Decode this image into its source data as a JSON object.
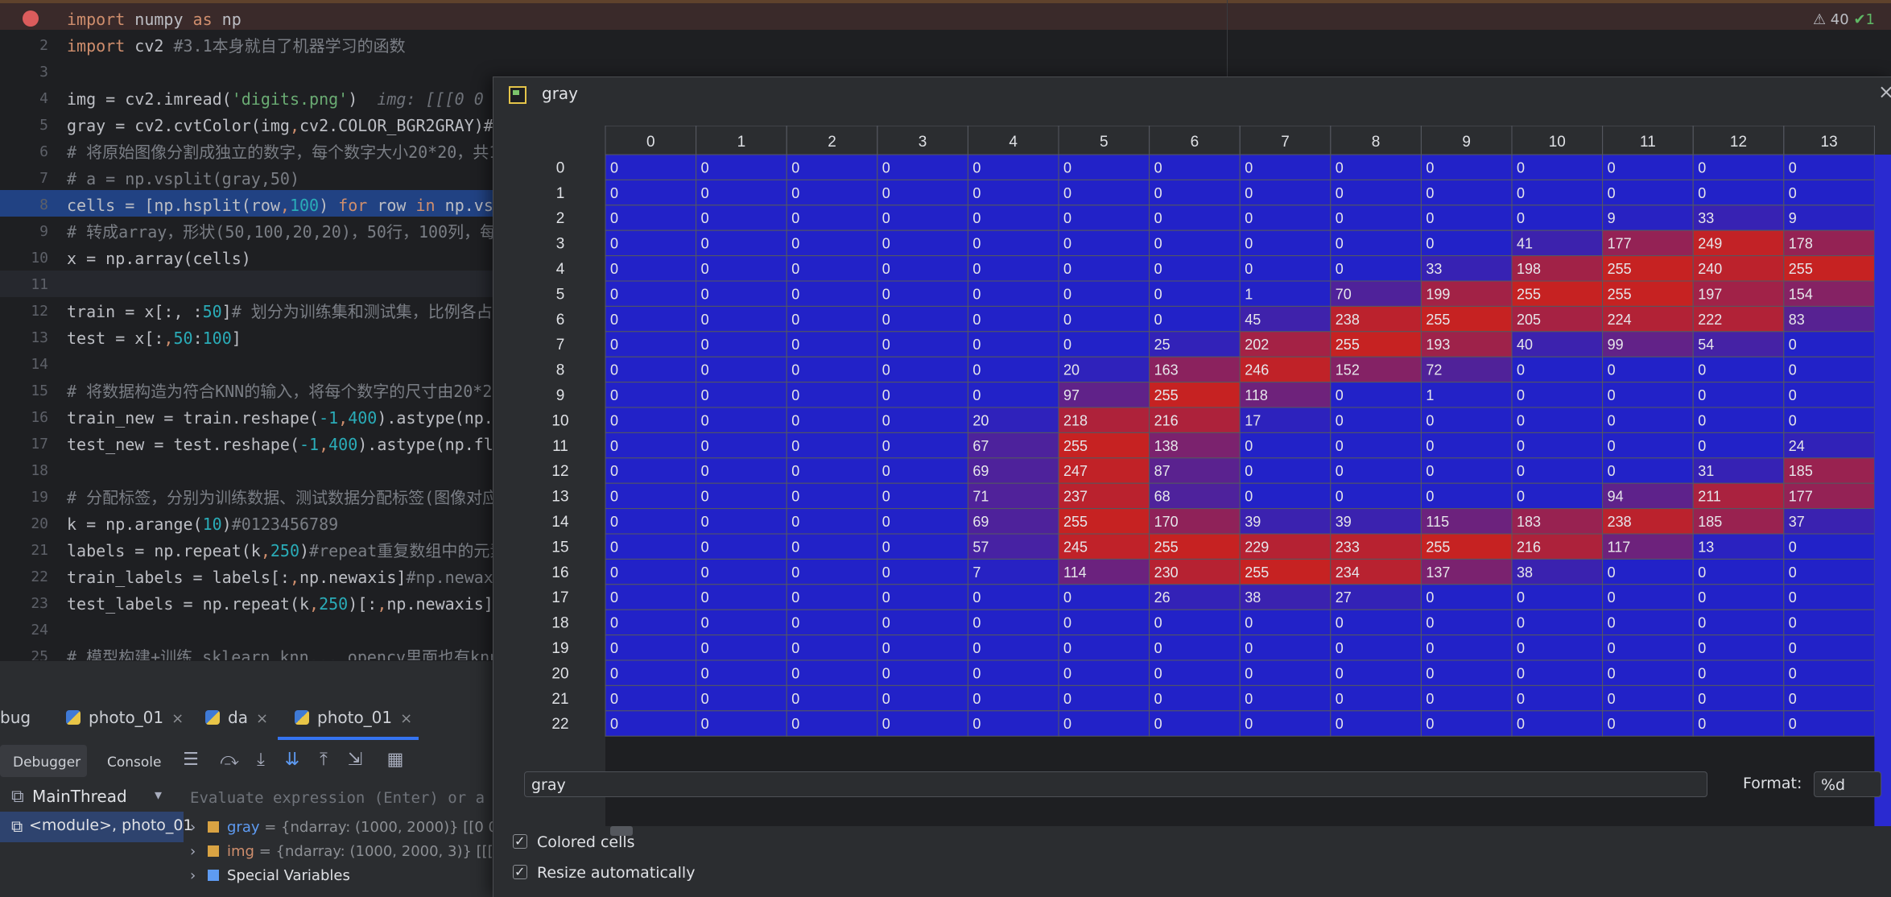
{
  "editor": {
    "line_numbers": [
      "2",
      "3",
      "4",
      "5",
      "6",
      "7",
      "8",
      "9",
      "10",
      "11",
      "12",
      "13",
      "14",
      "15",
      "16",
      "17",
      "18",
      "19",
      "20",
      "21",
      "22",
      "23",
      "24",
      "25"
    ],
    "lines": {
      "l1": {
        "a": "import",
        "b": " numpy ",
        "c": "as",
        "d": " np"
      },
      "l2": {
        "a": "import",
        "b": " cv2 ",
        "c": "#3.1本身就自了机器学习的函数"
      },
      "l4": {
        "a": "img = cv2.imread(",
        "b": "'digits.png'",
        "c": ")  ",
        "d": "img: [[[0 0"
      },
      "l5": {
        "a": "gray = cv2.cvtColor(img",
        "b": ",",
        "c": "cv2.COLOR_BGR2GRAY)#"
      },
      "l6": {
        "a": "# 将原始图像分割成独立的数字，每个数字大小20*20，共150"
      },
      "l7": {
        "a": "# a = np.vsplit(gray,50)"
      },
      "l8": {
        "a": "cells = [np.hsplit(row",
        "b": ",",
        "c": "100",
        "d": ") ",
        "e": "for",
        "f": " row ",
        "g": "in",
        "h": " np.vs"
      },
      "l9": {
        "a": "# 转成array，形状(50,100,20,20)，50行，100列，每个"
      },
      "l10": {
        "a": "x = np.array(cells)"
      },
      "l12": {
        "a": "train = x[:, :",
        "b": "50",
        "c": "]",
        "d": "# 划分为训练集和测试集，比例各占一"
      },
      "l13": {
        "a": "test = x[:",
        "b": ",",
        "c": "50",
        "d": ":",
        "e": "100",
        "f": "]"
      },
      "l15": {
        "a": "# 将数据构造为符合KNN的输入，将每个数字的尺寸由20*20"
      },
      "l16": {
        "a": "train_new = train.reshape(",
        "b": "-1",
        "c": ",",
        "d": "400",
        "e": ").astype(np."
      },
      "l17": {
        "a": "test_new = test.reshape(",
        "b": "-1",
        "c": ",",
        "d": "400",
        "e": ").astype(np.fl"
      },
      "l19": {
        "a": "# 分配标签，分别为训练数据、测试数据分配标签(图像对应的"
      },
      "l20": {
        "a": "k = np.arange(",
        "b": "10",
        "c": ")",
        "d": "#0123456789"
      },
      "l21": {
        "a": "labels = np.repeat(k",
        "b": ",",
        "c": "250",
        "d": ")",
        "e": "#repeat重复数组中的元素"
      },
      "l22": {
        "a": "train_labels = labels[:",
        "b": ",",
        "c": "np.newaxis]",
        "d": "#np.newax"
      },
      "l23": {
        "a": "test_labels = np.repeat(k",
        "b": ",",
        "c": "250",
        "d": ")[:",
        "e": ",",
        "f": "np.newaxis]"
      },
      "l25": {
        "a": "# 模型构建+训练 sklearn knn... opencv里面也有knn"
      }
    },
    "warnings": {
      "warn_count": "⚠ 40",
      "ok_count": "✔1"
    }
  },
  "debug": {
    "tabs": [
      {
        "label": "bug"
      },
      {
        "label": "photo_01",
        "close": "×"
      },
      {
        "label": "da",
        "close": "×"
      },
      {
        "label": "photo_01",
        "close": "×"
      }
    ],
    "subtabs": {
      "debugger": "Debugger",
      "console": "Console"
    },
    "thread": {
      "label": "MainThread",
      "arrow": "▾"
    },
    "eval_placeholder": "Evaluate expression (Enter) or a",
    "frame": "<module>, photo_01",
    "vars": [
      {
        "name": "gray",
        "value": "= {ndarray: (1000, 2000)} [[0 0"
      },
      {
        "name": "img",
        "value": "= {ndarray: (1000, 2000, 3)} [[[0"
      },
      {
        "name": "Special Variables",
        "value": ""
      }
    ],
    "icons": {
      "frames": "⧉",
      "list": "☰",
      "step_over": "⤼",
      "step_into": "⤓",
      "step_mine": "⇊",
      "step_out": "⤒",
      "run_cursor": "⇲",
      "table": "▦"
    }
  },
  "dialog": {
    "title": "gray",
    "close": "×",
    "name_field": "gray",
    "format_label": "Format:",
    "format_value": "%d",
    "options": [
      {
        "label": "Colored cells",
        "checked": true
      },
      {
        "label": "Resize automatically",
        "checked": true
      }
    ],
    "grid": {
      "col_headers": [
        "0",
        "1",
        "2",
        "3",
        "4",
        "5",
        "6",
        "7",
        "8",
        "9",
        "10",
        "11",
        "12",
        "13"
      ],
      "row_headers": [
        "0",
        "1",
        "2",
        "3",
        "4",
        "5",
        "6",
        "7",
        "8",
        "9",
        "10",
        "11",
        "12",
        "13",
        "14",
        "15",
        "16",
        "17",
        "18",
        "19",
        "20",
        "21",
        "22"
      ],
      "rows": [
        [
          0,
          0,
          0,
          0,
          0,
          0,
          0,
          0,
          0,
          0,
          0,
          0,
          0,
          0
        ],
        [
          0,
          0,
          0,
          0,
          0,
          0,
          0,
          0,
          0,
          0,
          0,
          0,
          0,
          0
        ],
        [
          0,
          0,
          0,
          0,
          0,
          0,
          0,
          0,
          0,
          0,
          0,
          9,
          33,
          9
        ],
        [
          0,
          0,
          0,
          0,
          0,
          0,
          0,
          0,
          0,
          0,
          41,
          177,
          249,
          178
        ],
        [
          0,
          0,
          0,
          0,
          0,
          0,
          0,
          0,
          0,
          33,
          198,
          255,
          240,
          255
        ],
        [
          0,
          0,
          0,
          0,
          0,
          0,
          0,
          1,
          70,
          199,
          255,
          255,
          197,
          154
        ],
        [
          0,
          0,
          0,
          0,
          0,
          0,
          0,
          45,
          238,
          255,
          205,
          224,
          222,
          83
        ],
        [
          0,
          0,
          0,
          0,
          0,
          0,
          25,
          202,
          255,
          193,
          40,
          99,
          54,
          0
        ],
        [
          0,
          0,
          0,
          0,
          0,
          20,
          163,
          246,
          152,
          72,
          0,
          0,
          0,
          0
        ],
        [
          0,
          0,
          0,
          0,
          0,
          97,
          255,
          118,
          0,
          1,
          0,
          0,
          0,
          0
        ],
        [
          0,
          0,
          0,
          0,
          20,
          218,
          216,
          17,
          0,
          0,
          0,
          0,
          0,
          0
        ],
        [
          0,
          0,
          0,
          0,
          67,
          255,
          138,
          0,
          0,
          0,
          0,
          0,
          0,
          24
        ],
        [
          0,
          0,
          0,
          0,
          69,
          247,
          87,
          0,
          0,
          0,
          0,
          0,
          31,
          185
        ],
        [
          0,
          0,
          0,
          0,
          71,
          237,
          68,
          0,
          0,
          0,
          0,
          94,
          211,
          177
        ],
        [
          0,
          0,
          0,
          0,
          69,
          255,
          170,
          39,
          39,
          115,
          183,
          238,
          185,
          37
        ],
        [
          0,
          0,
          0,
          0,
          57,
          245,
          255,
          229,
          233,
          255,
          216,
          117,
          13,
          0
        ],
        [
          0,
          0,
          0,
          0,
          7,
          114,
          230,
          255,
          234,
          137,
          38,
          0,
          0,
          0
        ],
        [
          0,
          0,
          0,
          0,
          0,
          0,
          26,
          38,
          27,
          0,
          0,
          0,
          0,
          0
        ],
        [
          0,
          0,
          0,
          0,
          0,
          0,
          0,
          0,
          0,
          0,
          0,
          0,
          0,
          0
        ],
        [
          0,
          0,
          0,
          0,
          0,
          0,
          0,
          0,
          0,
          0,
          0,
          0,
          0,
          0
        ],
        [
          0,
          0,
          0,
          0,
          0,
          0,
          0,
          0,
          0,
          0,
          0,
          0,
          0,
          0
        ],
        [
          0,
          0,
          0,
          0,
          0,
          0,
          0,
          0,
          0,
          0,
          0,
          0,
          0,
          0
        ],
        [
          0,
          0,
          0,
          0,
          0,
          0,
          0,
          0,
          0,
          0,
          0,
          0,
          0,
          0
        ]
      ],
      "colors": {
        "low": "#2222c8",
        "high": "#c62222",
        "header_bg": "#2b2d30",
        "grid_line": "#555860"
      }
    }
  }
}
